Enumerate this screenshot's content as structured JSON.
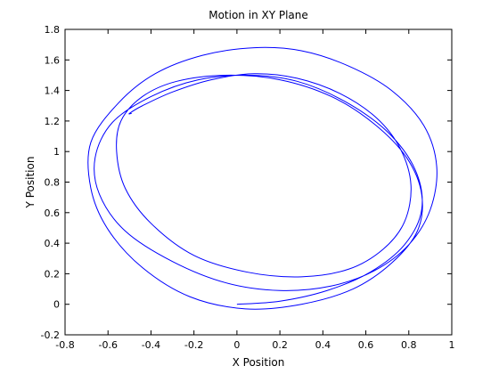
{
  "chart_data": {
    "type": "line",
    "title": "Motion in XY Plane",
    "xlabel": "X Position",
    "ylabel": "Y Position",
    "xlim": [
      -0.8,
      1
    ],
    "ylim": [
      -0.2,
      1.8
    ],
    "xticks": [
      -0.8,
      -0.6,
      -0.4,
      -0.2,
      0,
      0.2,
      0.4,
      0.6,
      0.8,
      1
    ],
    "yticks": [
      -0.2,
      0,
      0.2,
      0.4,
      0.6,
      0.8,
      1,
      1.2,
      1.4,
      1.6,
      1.8
    ],
    "xtick_labels": [
      "-0.8",
      "-0.6",
      "-0.4",
      "-0.2",
      "0",
      "0.2",
      "0.4",
      "0.6",
      "0.8",
      "1"
    ],
    "ytick_labels": [
      "-0.2",
      "0",
      "0.2",
      "0.4",
      "0.6",
      "0.8",
      "1",
      "1.2",
      "1.4",
      "1.6",
      "1.8"
    ],
    "grid": false,
    "series": [
      {
        "color": "#0000ff",
        "x": [
          0.0,
          0.2,
          0.42,
          0.62,
          0.78,
          0.86,
          0.83,
          0.7,
          0.5,
          0.28,
          0.06,
          -0.18,
          -0.4,
          -0.58,
          -0.66,
          -0.64,
          -0.52,
          -0.3,
          -0.05,
          0.2,
          0.44,
          0.64,
          0.8,
          0.9,
          0.93,
          0.87,
          0.72,
          0.52,
          0.3,
          0.08,
          -0.16,
          -0.38,
          -0.55,
          -0.68,
          -0.68,
          -0.6,
          -0.44,
          -0.22,
          0.04,
          0.3,
          0.54,
          0.72,
          0.84,
          0.86,
          0.79,
          0.64,
          0.44,
          0.2,
          -0.05,
          -0.28,
          -0.44,
          -0.54,
          -0.56,
          -0.52,
          -0.4,
          -0.2,
          0.05,
          0.3,
          0.52,
          0.68,
          0.78,
          0.81,
          0.76,
          0.65,
          0.48,
          0.28,
          0.08,
          -0.12,
          -0.3,
          -0.44,
          -0.5,
          -0.49
        ],
        "y": [
          0.0,
          0.02,
          0.09,
          0.21,
          0.39,
          0.62,
          0.88,
          1.13,
          1.33,
          1.46,
          1.5,
          1.47,
          1.36,
          1.19,
          0.96,
          0.72,
          0.48,
          0.28,
          0.14,
          0.09,
          0.12,
          0.22,
          0.39,
          0.62,
          0.9,
          1.17,
          1.4,
          1.56,
          1.66,
          1.68,
          1.63,
          1.51,
          1.32,
          1.06,
          0.76,
          0.49,
          0.24,
          0.05,
          -0.03,
          0.0,
          0.1,
          0.27,
          0.48,
          0.72,
          0.96,
          1.18,
          1.36,
          1.47,
          1.5,
          1.46,
          1.36,
          1.2,
          1.0,
          0.76,
          0.53,
          0.32,
          0.21,
          0.18,
          0.23,
          0.36,
          0.54,
          0.78,
          1.02,
          1.22,
          1.38,
          1.48,
          1.51,
          1.47,
          1.39,
          1.3,
          1.25,
          1.25
        ]
      }
    ]
  }
}
